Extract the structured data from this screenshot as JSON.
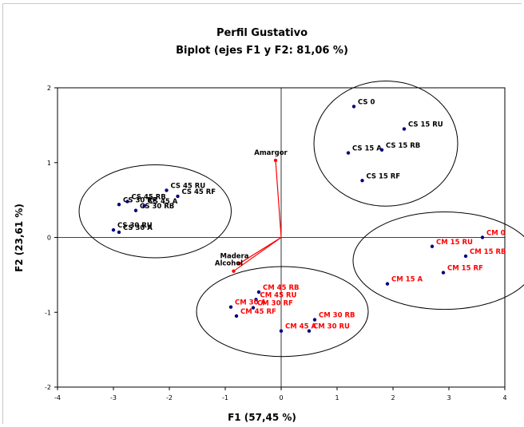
{
  "chart_data": {
    "type": "scatter",
    "title": "Perfil Gustativo",
    "subtitle": "Biplot (ejes F1 y F2: 81,06 %)",
    "xlabel": "F1 (57,45 %)",
    "ylabel": "F2 (23,61 %)",
    "xlim": [
      -4,
      4
    ],
    "ylim": [
      -2,
      2
    ],
    "xticks": [
      "-4",
      "-3",
      "-2",
      "-1",
      "0",
      "1",
      "2",
      "3",
      "4"
    ],
    "yticks": [
      "-2",
      "-1",
      "0",
      "1",
      "2"
    ],
    "grid": false,
    "colors": {
      "cs_points": "#00007f",
      "cm_label": "#ff0000",
      "variable": "#ff0000",
      "ellipse": "#000000"
    },
    "series": [
      {
        "group": "CS",
        "points": [
          {
            "label": "CS 0",
            "x": 1.3,
            "y": 1.75
          },
          {
            "label": "CS 15 RU",
            "x": 2.2,
            "y": 1.45
          },
          {
            "label": "CS 15 A",
            "x": 1.2,
            "y": 1.13
          },
          {
            "label": "CS 15 RB",
            "x": 1.8,
            "y": 1.17
          },
          {
            "label": "CS 15 RF",
            "x": 1.45,
            "y": 0.76
          },
          {
            "label": "CS 45 RU",
            "x": -2.05,
            "y": 0.63
          },
          {
            "label": "CS 45 RB",
            "x": -2.75,
            "y": 0.48
          },
          {
            "label": "CS 45 RF",
            "x": -1.85,
            "y": 0.55
          },
          {
            "label": "CS 30 RF",
            "x": -2.9,
            "y": 0.44
          },
          {
            "label": "CS 45 A",
            "x": -2.45,
            "y": 0.42
          },
          {
            "label": "CS 30 RB",
            "x": -2.6,
            "y": 0.36
          },
          {
            "label": "CS 30 RU",
            "x": -3.0,
            "y": 0.1
          },
          {
            "label": "CS 30 A",
            "x": -2.9,
            "y": 0.07
          }
        ]
      },
      {
        "group": "CM",
        "points": [
          {
            "label": "CM 0",
            "x": 3.6,
            "y": 0.0
          },
          {
            "label": "CM 15 RU",
            "x": 2.7,
            "y": -0.12
          },
          {
            "label": "CM 15 RB",
            "x": 3.3,
            "y": -0.25
          },
          {
            "label": "CM 15 A",
            "x": 1.9,
            "y": -0.62
          },
          {
            "label": "CM 15 RF",
            "x": 2.9,
            "y": -0.47
          },
          {
            "label": "CM 45 RB",
            "x": -0.4,
            "y": -0.73
          },
          {
            "label": "CM 45 RU",
            "x": -0.45,
            "y": -0.83
          },
          {
            "label": "CM 30 A",
            "x": -0.9,
            "y": -0.93
          },
          {
            "label": "CM 30 RF",
            "x": -0.5,
            "y": -0.94
          },
          {
            "label": "CM 45 RF",
            "x": -0.8,
            "y": -1.05
          },
          {
            "label": "CM 30 RB",
            "x": 0.6,
            "y": -1.1
          },
          {
            "label": "CM 45 A",
            "x": 0.0,
            "y": -1.25
          },
          {
            "label": "CM 30 RU",
            "x": 0.5,
            "y": -1.25
          }
        ]
      }
    ],
    "variables": [
      {
        "label": "Amargor",
        "x": -0.1,
        "y": 1.03
      },
      {
        "label": "Madera",
        "x": -0.75,
        "y": -0.35
      },
      {
        "label": "Alcohol",
        "x": -0.85,
        "y": -0.45
      }
    ]
  }
}
